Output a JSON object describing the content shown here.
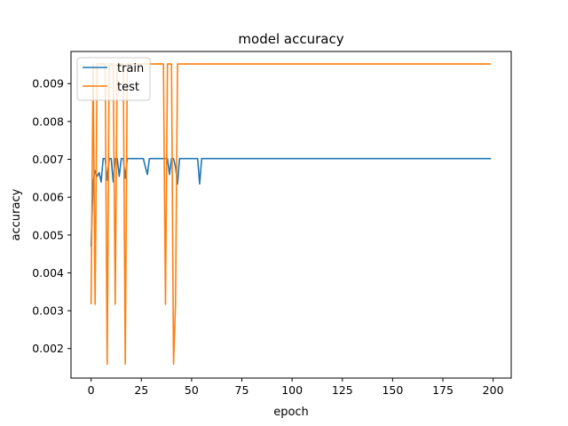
{
  "chart_data": {
    "type": "line",
    "title": "model accuracy",
    "xlabel": "epoch",
    "ylabel": "accuracy",
    "xlim": [
      -10,
      209
    ],
    "ylim": [
      0.00122,
      0.00985
    ],
    "xticks": [
      0,
      25,
      50,
      75,
      100,
      125,
      150,
      175,
      200
    ],
    "yticks": [
      0.002,
      0.003,
      0.004,
      0.005,
      0.006,
      0.007,
      0.008,
      0.009
    ],
    "ytick_labels": [
      "0.002",
      "0.003",
      "0.004",
      "0.005",
      "0.006",
      "0.007",
      "0.008",
      "0.009"
    ],
    "grid": false,
    "legend_position": "upper-left",
    "series": [
      {
        "name": "train",
        "color": "#1f77b4",
        "points": [
          [
            0,
            0.0047
          ],
          [
            1,
            0.0064
          ],
          [
            2,
            0.0067
          ],
          [
            3,
            0.00655
          ],
          [
            4,
            0.00665
          ],
          [
            5,
            0.0064
          ],
          [
            6,
            0.00702
          ],
          [
            7,
            0.00702
          ],
          [
            8,
            0.00645
          ],
          [
            9,
            0.00702
          ],
          [
            10,
            0.00702
          ],
          [
            11,
            0.0064
          ],
          [
            12,
            0.00702
          ],
          [
            13,
            0.00702
          ],
          [
            14,
            0.00655
          ],
          [
            15,
            0.00702
          ],
          [
            16,
            0.00702
          ],
          [
            17,
            0.0065
          ],
          [
            18,
            0.00702
          ],
          [
            26,
            0.00702
          ],
          [
            27,
            0.0068
          ],
          [
            28,
            0.0066
          ],
          [
            29,
            0.00702
          ],
          [
            38,
            0.00702
          ],
          [
            39,
            0.0066
          ],
          [
            40,
            0.00702
          ],
          [
            41,
            0.00702
          ],
          [
            42,
            0.0068
          ],
          [
            43,
            0.00635
          ],
          [
            44,
            0.00702
          ],
          [
            53,
            0.00702
          ],
          [
            54,
            0.00635
          ],
          [
            55,
            0.00702
          ],
          [
            199,
            0.00702
          ]
        ]
      },
      {
        "name": "test",
        "color": "#ff7f0e",
        "points": [
          [
            0,
            0.00317
          ],
          [
            1,
            0.00952
          ],
          [
            2,
            0.00317
          ],
          [
            3,
            0.00952
          ],
          [
            7,
            0.00952
          ],
          [
            8,
            0.00159
          ],
          [
            9,
            0.00952
          ],
          [
            11,
            0.00952
          ],
          [
            12,
            0.00317
          ],
          [
            13,
            0.00952
          ],
          [
            16,
            0.00952
          ],
          [
            17,
            0.00159
          ],
          [
            18,
            0.00952
          ],
          [
            36,
            0.00952
          ],
          [
            37,
            0.00317
          ],
          [
            38,
            0.00952
          ],
          [
            40,
            0.00952
          ],
          [
            41,
            0.00159
          ],
          [
            42,
            0.00317
          ],
          [
            43,
            0.00952
          ],
          [
            199,
            0.00952
          ]
        ]
      }
    ]
  }
}
